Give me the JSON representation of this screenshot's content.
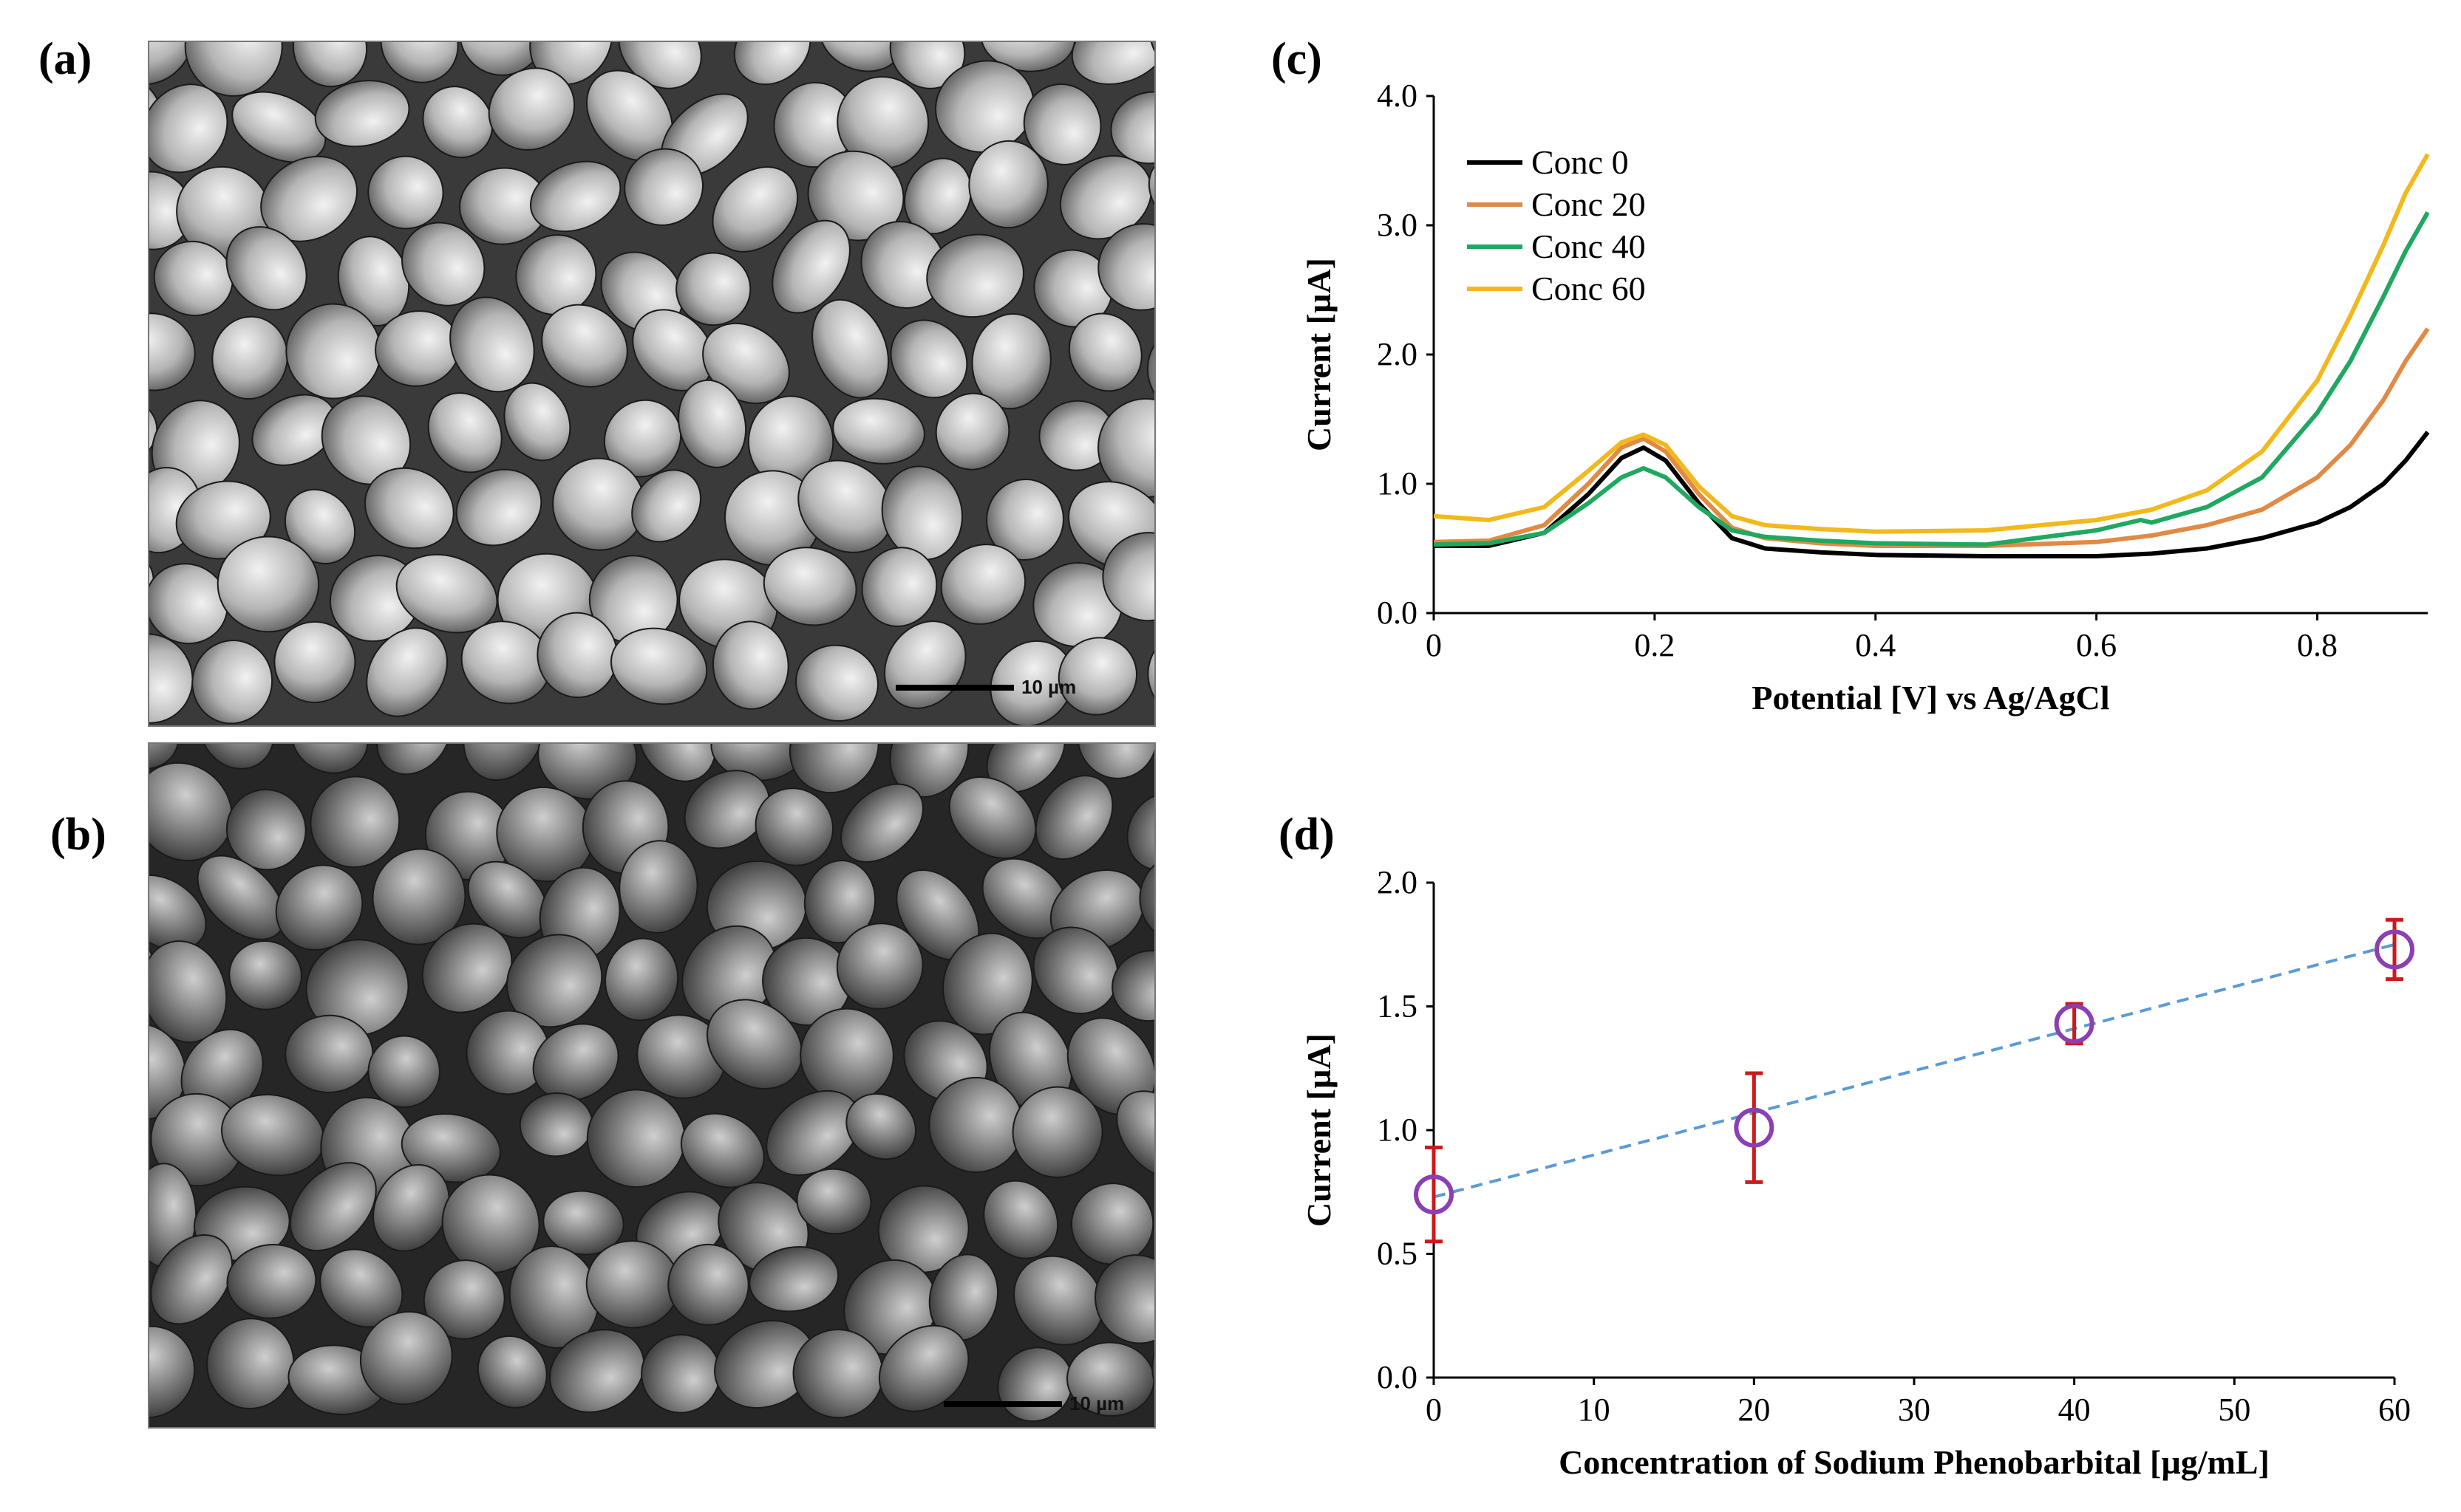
{
  "figure": {
    "panel_a": {
      "label": "(a)",
      "scale_label": "10 µm",
      "tone": "light"
    },
    "panel_b": {
      "label": "(b)",
      "scale_label": "10 µm",
      "tone": "dark"
    },
    "panel_c": {
      "label": "(c)"
    },
    "panel_d": {
      "label": "(d)"
    }
  },
  "chart_data": [
    {
      "type": "line",
      "panel": "c",
      "title": "",
      "xlabel": "Potential [V] vs Ag/AgCl",
      "ylabel": "Current [µA]",
      "xlim": [
        0,
        0.9
      ],
      "ylim": [
        0,
        4.0
      ],
      "xticks": [
        0,
        0.2,
        0.4,
        0.6,
        0.8
      ],
      "xtick_labels": [
        "0",
        "0.2",
        "0.4",
        "0.6",
        "0.8"
      ],
      "yticks": [
        0,
        1,
        2,
        3,
        4
      ],
      "ytick_labels": [
        "0.0",
        "1.0",
        "2.0",
        "3.0",
        "4.0"
      ],
      "legend_position": "top-left",
      "series": [
        {
          "name": "Conc 0",
          "color": "#000000",
          "x": [
            0,
            0.05,
            0.1,
            0.14,
            0.17,
            0.19,
            0.21,
            0.24,
            0.27,
            0.3,
            0.35,
            0.4,
            0.5,
            0.6,
            0.65,
            0.7,
            0.75,
            0.8,
            0.83,
            0.86,
            0.88,
            0.9
          ],
          "y": [
            0.52,
            0.52,
            0.62,
            0.92,
            1.2,
            1.28,
            1.18,
            0.85,
            0.58,
            0.5,
            0.47,
            0.45,
            0.44,
            0.44,
            0.46,
            0.5,
            0.58,
            0.7,
            0.82,
            1.0,
            1.18,
            1.4
          ]
        },
        {
          "name": "Conc 20",
          "color": "#e08a45",
          "x": [
            0,
            0.05,
            0.1,
            0.14,
            0.17,
            0.19,
            0.21,
            0.24,
            0.27,
            0.3,
            0.35,
            0.4,
            0.5,
            0.6,
            0.65,
            0.7,
            0.75,
            0.8,
            0.83,
            0.86,
            0.88,
            0.9
          ],
          "y": [
            0.55,
            0.56,
            0.68,
            1.0,
            1.28,
            1.35,
            1.25,
            0.92,
            0.66,
            0.58,
            0.54,
            0.52,
            0.52,
            0.55,
            0.6,
            0.68,
            0.8,
            1.05,
            1.3,
            1.65,
            1.95,
            2.2
          ]
        },
        {
          "name": "Conc 40",
          "color": "#1fa860",
          "x": [
            0,
            0.05,
            0.1,
            0.14,
            0.17,
            0.19,
            0.21,
            0.24,
            0.27,
            0.3,
            0.35,
            0.4,
            0.5,
            0.6,
            0.64,
            0.65,
            0.7,
            0.75,
            0.8,
            0.83,
            0.86,
            0.88,
            0.9
          ],
          "y": [
            0.53,
            0.54,
            0.62,
            0.85,
            1.05,
            1.12,
            1.05,
            0.82,
            0.64,
            0.59,
            0.56,
            0.54,
            0.53,
            0.64,
            0.72,
            0.7,
            0.82,
            1.05,
            1.55,
            1.95,
            2.45,
            2.8,
            3.1
          ]
        },
        {
          "name": "Conc 60",
          "color": "#f2b81c",
          "x": [
            0,
            0.05,
            0.1,
            0.14,
            0.17,
            0.19,
            0.21,
            0.24,
            0.27,
            0.3,
            0.35,
            0.4,
            0.5,
            0.6,
            0.65,
            0.7,
            0.75,
            0.8,
            0.83,
            0.86,
            0.88,
            0.9
          ],
          "y": [
            0.75,
            0.72,
            0.82,
            1.1,
            1.32,
            1.38,
            1.3,
            0.98,
            0.75,
            0.68,
            0.65,
            0.63,
            0.64,
            0.72,
            0.8,
            0.95,
            1.25,
            1.8,
            2.3,
            2.85,
            3.25,
            3.55
          ]
        }
      ]
    },
    {
      "type": "scatter",
      "panel": "d",
      "title": "",
      "xlabel": "Concentration of Sodium Phenobarbital [µg/mL]",
      "ylabel": "Current  [µA]",
      "xlim": [
        0,
        60
      ],
      "ylim": [
        0,
        2.0
      ],
      "xticks": [
        0,
        10,
        20,
        30,
        40,
        50,
        60
      ],
      "xtick_labels": [
        "0",
        "10",
        "20",
        "30",
        "40",
        "50",
        "60"
      ],
      "yticks": [
        0,
        0.5,
        1.0,
        1.5,
        2.0
      ],
      "ytick_labels": [
        "0.0",
        "0.5",
        "1.0",
        "1.5",
        "2.0"
      ],
      "points": {
        "x": [
          0,
          20,
          40,
          60
        ],
        "y": [
          0.74,
          1.01,
          1.43,
          1.73
        ],
        "yerr": [
          0.19,
          0.22,
          0.08,
          0.12
        ],
        "marker_color": "#8b3fb3",
        "error_color": "#cc1a1a"
      },
      "trendline": {
        "x": [
          0,
          60
        ],
        "y": [
          0.73,
          1.75
        ],
        "color": "#5b9bd5",
        "style": "dashed"
      }
    }
  ]
}
